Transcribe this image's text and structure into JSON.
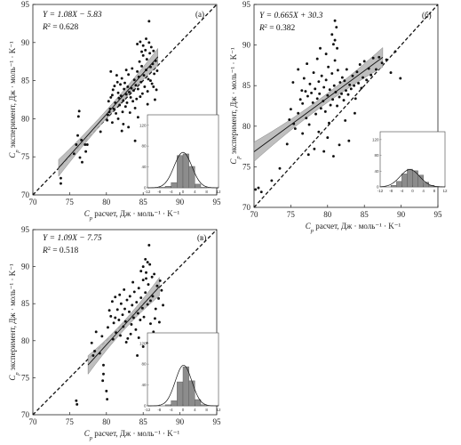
{
  "chart_data": [
    {
      "type": "scatter",
      "panel_label": "(а)",
      "equation": "Y = 1.08X − 5.83",
      "r2_label": "R",
      "r2_value": "= 0.628",
      "xlabel_main": "C",
      "xlabel_rest": " расчет, Дж · моль⁻¹ · K⁻¹",
      "ylabel_main": "C",
      "ylabel_rest": " эксперимент, Дж · моль⁻¹ · K⁻¹",
      "axis_sub": "p",
      "xlim": [
        70,
        95
      ],
      "ylim": [
        70,
        95
      ],
      "xticks": [
        "70",
        "75",
        "80",
        "85",
        "90",
        "95"
      ],
      "yticks": [
        "70",
        "75",
        "80",
        "85",
        "90",
        "95"
      ],
      "fit": {
        "slope": 1.08,
        "intercept": -5.83,
        "xrange": [
          73.5,
          87
        ],
        "band": [
          0.55,
          1.1
        ]
      },
      "points": [
        [
          73.8,
          71.5
        ],
        [
          73.8,
          72.2
        ],
        [
          75.6,
          75.4
        ],
        [
          75.9,
          76.6
        ],
        [
          76.1,
          77.8
        ],
        [
          76.2,
          80.3
        ],
        [
          76.3,
          81
        ],
        [
          76.4,
          74.9
        ],
        [
          76.6,
          77.2
        ],
        [
          76.7,
          74.3
        ],
        [
          77.1,
          76.6
        ],
        [
          77.2,
          75.7
        ],
        [
          77.4,
          76.6
        ],
        [
          79.2,
          78.3
        ],
        [
          80.1,
          79.8
        ],
        [
          80.2,
          80.5
        ],
        [
          80.4,
          80.9
        ],
        [
          80.3,
          82.3
        ],
        [
          80.5,
          81.3
        ],
        [
          80.6,
          82.8
        ],
        [
          80.8,
          83.1
        ],
        [
          80.9,
          83.8
        ],
        [
          81.0,
          81.3
        ],
        [
          81.1,
          84.3
        ],
        [
          81.2,
          82.1
        ],
        [
          81.3,
          80.7
        ],
        [
          81.5,
          84.8
        ],
        [
          81.6,
          83.4
        ],
        [
          81.7,
          82.7
        ],
        [
          81.8,
          81.8
        ],
        [
          81.9,
          84.5
        ],
        [
          82.0,
          83.0
        ],
        [
          82.1,
          85.3
        ],
        [
          82.2,
          80.9
        ],
        [
          82.3,
          82.4
        ],
        [
          82.4,
          83.9
        ],
        [
          82.5,
          84.7
        ],
        [
          82.6,
          81.6
        ],
        [
          82.7,
          83.2
        ],
        [
          82.8,
          82.1
        ],
        [
          82.9,
          84.2
        ],
        [
          83.0,
          85.8
        ],
        [
          83.1,
          83.5
        ],
        [
          83.2,
          80.8
        ],
        [
          83.3,
          82.8
        ],
        [
          83.4,
          84.0
        ],
        [
          83.5,
          86.6
        ],
        [
          83.6,
          82.3
        ],
        [
          83.7,
          83.7
        ],
        [
          83.8,
          85.1
        ],
        [
          83.9,
          81.4
        ],
        [
          84.0,
          84.4
        ],
        [
          84.1,
          82.6
        ],
        [
          84.2,
          86.2
        ],
        [
          84.3,
          83.9
        ],
        [
          84.4,
          85.5
        ],
        [
          84.5,
          87.5
        ],
        [
          84.6,
          82.9
        ],
        [
          84.7,
          84.8
        ],
        [
          84.8,
          86.9
        ],
        [
          84.9,
          83.3
        ],
        [
          85.0,
          88.3
        ],
        [
          85.1,
          85.7
        ],
        [
          85.2,
          84.2
        ],
        [
          85.3,
          89.0
        ],
        [
          85.4,
          86.4
        ],
        [
          85.5,
          87.8
        ],
        [
          85.6,
          83.6
        ],
        [
          85.7,
          85.2
        ],
        [
          85.8,
          90.0
        ],
        [
          85.9,
          88.6
        ],
        [
          86.0,
          86.8
        ],
        [
          86.1,
          89.4
        ],
        [
          86.2,
          84.6
        ],
        [
          86.3,
          87.2
        ],
        [
          86.4,
          88.9
        ],
        [
          86.5,
          85.9
        ],
        [
          86.7,
          87.6
        ],
        [
          86.9,
          86.3
        ],
        [
          84.2,
          89.8
        ],
        [
          84.6,
          90.1
        ],
        [
          85.0,
          89.6
        ],
        [
          85.4,
          90.5
        ],
        [
          84.8,
          88.8
        ],
        [
          85.8,
          92.8
        ],
        [
          83.9,
          77.1
        ],
        [
          80.8,
          79.5
        ],
        [
          81.6,
          80.0
        ],
        [
          82.3,
          79.3
        ],
        [
          86.0,
          85.0
        ],
        [
          86.8,
          83.8
        ],
        [
          86.6,
          82.5
        ],
        [
          83.0,
          78.9
        ],
        [
          82.1,
          78.4
        ],
        [
          84.3,
          80.2
        ],
        [
          85.6,
          81.9
        ],
        [
          86.4,
          84.2
        ],
        [
          82.7,
          86.4
        ],
        [
          81.4,
          85.7
        ],
        [
          80.6,
          86.2
        ]
      ],
      "inset": {
        "xticks": [
          "-12",
          "-8",
          "-4",
          "0",
          "4",
          "8",
          "12"
        ],
        "yticks": [
          "0",
          "40",
          "80",
          "120"
        ],
        "bins": [
          -12,
          -10,
          -8,
          -6,
          -4,
          -2,
          0,
          2,
          4,
          6,
          8,
          10,
          12
        ],
        "counts": [
          0,
          0,
          1,
          3,
          10,
          62,
          65,
          41,
          7,
          1,
          0,
          0
        ],
        "curve_mean": 0.0,
        "curve_sd": 3.0,
        "curve_peak": 68
      }
    },
    {
      "type": "scatter",
      "panel_label": "(б)",
      "equation": "Y = 0.665X + 30.3",
      "r2_label": "R",
      "r2_value": "= 0.382",
      "xlabel_main": "C",
      "xlabel_rest": " расчет, Дж · моль⁻¹ · K⁻¹",
      "ylabel_main": "C",
      "ylabel_rest": " эксперимент, Дж · моль⁻¹ · K⁻¹",
      "axis_sub": "p",
      "xlim": [
        70,
        95
      ],
      "ylim": [
        70,
        95
      ],
      "xticks": [
        "70",
        "75",
        "80",
        "85",
        "90",
        "95"
      ],
      "yticks": [
        "70",
        "75",
        "80",
        "85",
        "90",
        "95"
      ],
      "fit": {
        "slope": 0.665,
        "intercept": 30.3,
        "xrange": [
          70,
          87.5
        ],
        "band": [
          0.55,
          1.2
        ]
      },
      "points": [
        [
          70.2,
          72.2
        ],
        [
          70.6,
          72.4
        ],
        [
          71.0,
          71.9
        ],
        [
          72.4,
          73.3
        ],
        [
          73.5,
          74.8
        ],
        [
          74.5,
          77.8
        ],
        [
          74.8,
          80.8
        ],
        [
          75.0,
          82.1
        ],
        [
          75.4,
          80.3
        ],
        [
          75.6,
          79.7
        ],
        [
          76.0,
          81.6
        ],
        [
          76.3,
          83.3
        ],
        [
          76.5,
          84.4
        ],
        [
          76.6,
          82.8
        ],
        [
          76.8,
          85.9
        ],
        [
          77.0,
          84.3
        ],
        [
          77.1,
          81.0
        ],
        [
          77.3,
          83.7
        ],
        [
          77.5,
          80.2
        ],
        [
          77.6,
          85.2
        ],
        [
          77.8,
          84.1
        ],
        [
          78.0,
          82.9
        ],
        [
          78.1,
          86.6
        ],
        [
          78.3,
          84.6
        ],
        [
          78.4,
          81.5
        ],
        [
          78.6,
          83.4
        ],
        [
          78.8,
          85.5
        ],
        [
          78.9,
          84.0
        ],
        [
          79.1,
          82.2
        ],
        [
          79.2,
          86.2
        ],
        [
          79.4,
          83.1
        ],
        [
          79.5,
          84.8
        ],
        [
          79.7,
          81.8
        ],
        [
          79.8,
          85.7
        ],
        [
          80.0,
          83.8
        ],
        [
          80.1,
          87.3
        ],
        [
          80.3,
          84.5
        ],
        [
          80.4,
          82.6
        ],
        [
          80.6,
          86.5
        ],
        [
          80.7,
          83.3
        ],
        [
          80.9,
          85.0
        ],
        [
          81.0,
          88.1
        ],
        [
          81.1,
          84.2
        ],
        [
          81.3,
          82.5
        ],
        [
          81.4,
          86.9
        ],
        [
          81.6,
          83.6
        ],
        [
          81.7,
          85.4
        ],
        [
          81.9,
          84.0
        ],
        [
          82.0,
          86.0
        ],
        [
          82.2,
          83.2
        ],
        [
          82.3,
          85.6
        ],
        [
          82.5,
          84.4
        ],
        [
          82.6,
          87.0
        ],
        [
          82.8,
          83.9
        ],
        [
          83.0,
          85.1
        ],
        [
          83.2,
          84.6
        ],
        [
          83.4,
          86.2
        ],
        [
          83.6,
          85.0
        ],
        [
          83.8,
          83.4
        ],
        [
          84.0,
          86.7
        ],
        [
          84.2,
          85.3
        ],
        [
          84.4,
          87.6
        ],
        [
          84.6,
          84.7
        ],
        [
          84.8,
          86.0
        ],
        [
          85.0,
          88.0
        ],
        [
          85.3,
          85.7
        ],
        [
          85.6,
          87.1
        ],
        [
          85.9,
          86.3
        ],
        [
          86.2,
          88.4
        ],
        [
          86.6,
          87.0
        ],
        [
          87.0,
          88.5
        ],
        [
          87.4,
          87.8
        ],
        [
          88.0,
          88.2
        ],
        [
          88.6,
          86.6
        ],
        [
          89.2,
          89.2
        ],
        [
          89.9,
          85.9
        ],
        [
          81.0,
          93.0
        ],
        [
          81.2,
          92.2
        ],
        [
          81.0,
          90.6
        ],
        [
          80.8,
          90.1
        ],
        [
          81.3,
          89.6
        ],
        [
          80.6,
          91.3
        ],
        [
          79.8,
          88.9
        ],
        [
          78.6,
          88.3
        ],
        [
          77.4,
          76.5
        ],
        [
          78.2,
          77.2
        ],
        [
          79.5,
          76.9
        ],
        [
          80.8,
          76.3
        ],
        [
          81.6,
          77.7
        ],
        [
          82.9,
          78.2
        ],
        [
          78.8,
          79.3
        ],
        [
          76.6,
          79.1
        ],
        [
          80.2,
          80.4
        ],
        [
          76.0,
          87.0
        ],
        [
          77.2,
          87.7
        ],
        [
          75.3,
          85.4
        ],
        [
          80.0,
          78.6
        ],
        [
          82.4,
          80.7
        ],
        [
          83.7,
          81.6
        ],
        [
          79.0,
          89.6
        ]
      ],
      "inset": {
        "xticks": [
          "-12",
          "-8",
          "-4",
          "0",
          "4",
          "8",
          "12"
        ],
        "yticks": [
          "0",
          "40",
          "80",
          "120"
        ],
        "bins": [
          -12,
          -10,
          -8,
          -6,
          -4,
          -2,
          0,
          2,
          4,
          6,
          8,
          10,
          12
        ],
        "counts": [
          0,
          0,
          4,
          14,
          33,
          45,
          41,
          30,
          12,
          4,
          1,
          0
        ],
        "curve_mean": -1.0,
        "curve_sd": 3.6,
        "curve_peak": 44
      }
    },
    {
      "type": "scatter",
      "panel_label": "(в)",
      "equation": "Y = 1.09X − 7.75",
      "r2_label": "R",
      "r2_value": "= 0.518",
      "xlabel_main": "C",
      "xlabel_rest": " расчет, Дж · моль⁻¹ · K⁻¹",
      "ylabel_main": "C",
      "ylabel_rest": " эксперимент, Дж · моль⁻¹ · K⁻¹",
      "axis_sub": "p",
      "xlim": [
        70,
        95
      ],
      "ylim": [
        70,
        95
      ],
      "xticks": [
        "70",
        "75",
        "80",
        "85",
        "90",
        "95"
      ],
      "yticks": [
        "70",
        "75",
        "80",
        "85",
        "90",
        "95"
      ],
      "fit": {
        "slope": 1.09,
        "intercept": -7.75,
        "xrange": [
          77.5,
          87.2
        ],
        "band": [
          0.6,
          1.25
        ]
      },
      "points": [
        [
          75.9,
          71.9
        ],
        [
          76.0,
          71.4
        ],
        [
          78.0,
          79.7
        ],
        [
          78.2,
          78.0
        ],
        [
          78.4,
          78.6
        ],
        [
          78.6,
          81.2
        ],
        [
          79.4,
          80.6
        ],
        [
          79.1,
          78.3
        ],
        [
          79.6,
          76.7
        ],
        [
          79.6,
          75.5
        ],
        [
          79.5,
          74.6
        ],
        [
          80.0,
          73.2
        ],
        [
          80.1,
          72.1
        ],
        [
          80.9,
          80.2
        ],
        [
          81.0,
          82.4
        ],
        [
          81.2,
          83.1
        ],
        [
          81.3,
          81.1
        ],
        [
          81.5,
          84.2
        ],
        [
          81.7,
          82.8
        ],
        [
          81.9,
          80.7
        ],
        [
          82.0,
          85.0
        ],
        [
          82.2,
          83.5
        ],
        [
          82.3,
          81.9
        ],
        [
          82.5,
          84.3
        ],
        [
          82.6,
          82.6
        ],
        [
          82.8,
          85.5
        ],
        [
          82.9,
          80.3
        ],
        [
          83.1,
          83.9
        ],
        [
          83.2,
          86.0
        ],
        [
          83.4,
          82.2
        ],
        [
          83.5,
          84.8
        ],
        [
          83.7,
          83.1
        ],
        [
          83.8,
          86.6
        ],
        [
          84.0,
          81.5
        ],
        [
          84.1,
          85.2
        ],
        [
          84.3,
          83.7
        ],
        [
          84.4,
          87.1
        ],
        [
          84.6,
          82.8
        ],
        [
          84.7,
          85.8
        ],
        [
          84.9,
          84.4
        ],
        [
          85.0,
          88.2
        ],
        [
          85.1,
          83.2
        ],
        [
          85.3,
          86.5
        ],
        [
          85.4,
          89.2
        ],
        [
          85.6,
          84.9
        ],
        [
          85.7,
          87.6
        ],
        [
          85.9,
          90.3
        ],
        [
          86.0,
          85.4
        ],
        [
          86.2,
          88.6
        ],
        [
          86.3,
          86.0
        ],
        [
          86.5,
          89.0
        ],
        [
          86.7,
          84.3
        ],
        [
          86.9,
          87.4
        ],
        [
          87.1,
          85.7
        ],
        [
          87.3,
          88.1
        ],
        [
          87.5,
          86.8
        ],
        [
          87.7,
          84.8
        ],
        [
          85.3,
          91.0
        ],
        [
          85.6,
          90.6
        ],
        [
          85.0,
          90.0
        ],
        [
          85.8,
          92.9
        ],
        [
          84.7,
          89.4
        ],
        [
          85.4,
          88.4
        ],
        [
          84.2,
          78.0
        ],
        [
          85.0,
          79.2
        ],
        [
          85.6,
          79.7
        ],
        [
          86.4,
          81.2
        ],
        [
          84.4,
          80.4
        ],
        [
          86.0,
          82.3
        ],
        [
          83.3,
          80.9
        ],
        [
          82.7,
          79.8
        ],
        [
          81.8,
          86.2
        ],
        [
          81.2,
          85.9
        ],
        [
          80.8,
          85.3
        ],
        [
          80.4,
          84.1
        ],
        [
          80.6,
          83.3
        ],
        [
          80.2,
          81.8
        ],
        [
          82.4,
          86.9
        ],
        [
          83.6,
          87.9
        ],
        [
          86.6,
          83.0
        ],
        [
          87.2,
          82.5
        ]
      ],
      "inset": {
        "xticks": [
          "-12",
          "-8",
          "-4",
          "0",
          "4",
          "8",
          "12"
        ],
        "yticks": [
          "0",
          "40",
          "80",
          "120"
        ],
        "bins": [
          -12,
          -10,
          -8,
          -6,
          -4,
          -2,
          0,
          2,
          4,
          6,
          8,
          10,
          12
        ],
        "counts": [
          0,
          0,
          0,
          2,
          10,
          46,
          75,
          48,
          12,
          2,
          0,
          0
        ],
        "curve_mean": 0.2,
        "curve_sd": 2.8,
        "curve_peak": 78
      }
    }
  ]
}
